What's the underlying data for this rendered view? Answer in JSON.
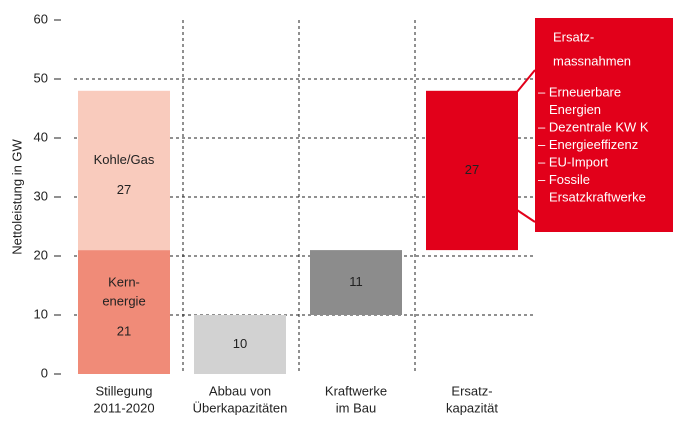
{
  "chart_data": {
    "type": "waterfall",
    "ylabel": "Nettoleistung in GW",
    "categories": [
      [
        "Stillegung",
        "2011-2020"
      ],
      [
        "Abbau von",
        "Überkapazitäten"
      ],
      [
        "Kraftwerke",
        "im Bau"
      ],
      [
        "Ersatz-",
        "kapazität"
      ]
    ],
    "stack": [
      {
        "name": [
          "Kern-",
          "energie"
        ],
        "color": "#f08b78",
        "value": 21
      },
      {
        "name": [
          "Kohle/Gas"
        ],
        "color": "#f9cbbd",
        "value": 27
      }
    ],
    "steps": [
      {
        "value": 10,
        "color": "#d2d2d2"
      },
      {
        "value": 11,
        "color": "#8c8c8c"
      },
      {
        "value": 27,
        "color": "#e2001a"
      }
    ],
    "ylim": [
      0,
      60
    ],
    "yticks": [
      0,
      10,
      20,
      30,
      40,
      50,
      60
    ],
    "grid": true,
    "callout": {
      "title": [
        "Ersatz-",
        "massnahmen"
      ],
      "color": "#e2001a",
      "items": [
        [
          "– Erneuerbare",
          "Energien"
        ],
        [
          "– Dezentrale KW K"
        ],
        [
          "– Energieeffizenz"
        ],
        [
          "– EU-Import"
        ],
        [
          "– Fossile",
          "Ersatzkraftwerke"
        ]
      ]
    }
  }
}
